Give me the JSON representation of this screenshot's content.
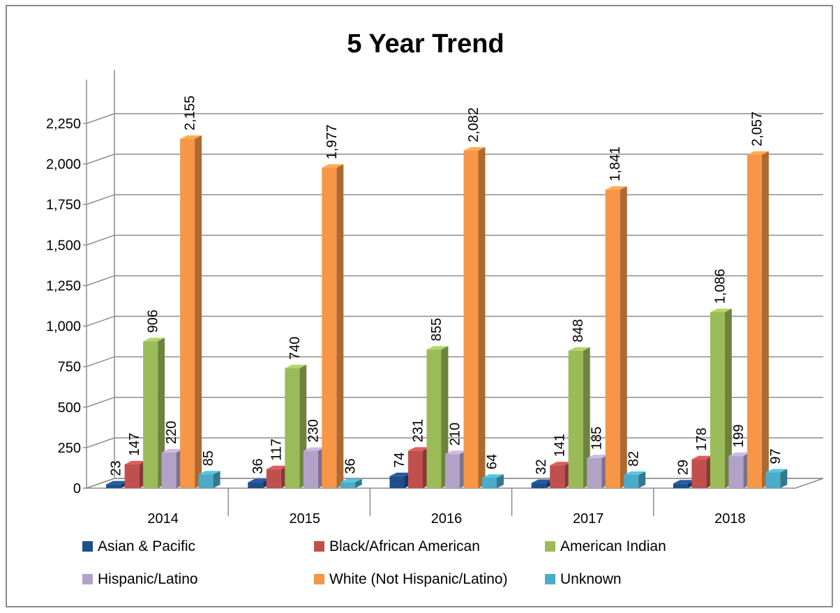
{
  "chart_data": {
    "type": "bar",
    "title": "5 Year Trend",
    "xlabel": "",
    "ylabel": "",
    "ylim": [
      0,
      2250
    ],
    "yticks": [
      "0",
      "250",
      "500",
      "750",
      "1,000",
      "1,250",
      "1,500",
      "1,750",
      "2,000",
      "2,250"
    ],
    "categories": [
      "2014",
      "2015",
      "2016",
      "2017",
      "2018"
    ],
    "grid": true,
    "legend_position": "bottom",
    "series": [
      {
        "name": "Asian & Pacific",
        "color": "#1f4e8c",
        "values": [
          23,
          36,
          74,
          32,
          29
        ],
        "labels": [
          "23",
          "36",
          "74",
          "32",
          "29"
        ]
      },
      {
        "name": "Black/African American",
        "color": "#c0504d",
        "values": [
          147,
          117,
          231,
          141,
          178
        ],
        "labels": [
          "147",
          "117",
          "231",
          "141",
          "178"
        ]
      },
      {
        "name": "American Indian",
        "color": "#9bbb59",
        "values": [
          906,
          740,
          855,
          848,
          1086
        ],
        "labels": [
          "906",
          "740",
          "855",
          "848",
          "1,086"
        ]
      },
      {
        "name": "Hispanic/Latino",
        "color": "#b3a2c7",
        "values": [
          220,
          230,
          210,
          185,
          199
        ],
        "labels": [
          "220",
          "230",
          "210",
          "185",
          "199"
        ]
      },
      {
        "name": "White (Not Hispanic/Latino)",
        "color": "#f79646",
        "values": [
          2155,
          1977,
          2082,
          1841,
          2057
        ],
        "labels": [
          "2,155",
          "1,977",
          "2,082",
          "1,841",
          "2,057"
        ]
      },
      {
        "name": "Unknown",
        "color": "#4aacc6",
        "values": [
          85,
          36,
          64,
          82,
          97
        ],
        "labels": [
          "85",
          "36",
          "64",
          "82",
          "97"
        ]
      }
    ]
  }
}
